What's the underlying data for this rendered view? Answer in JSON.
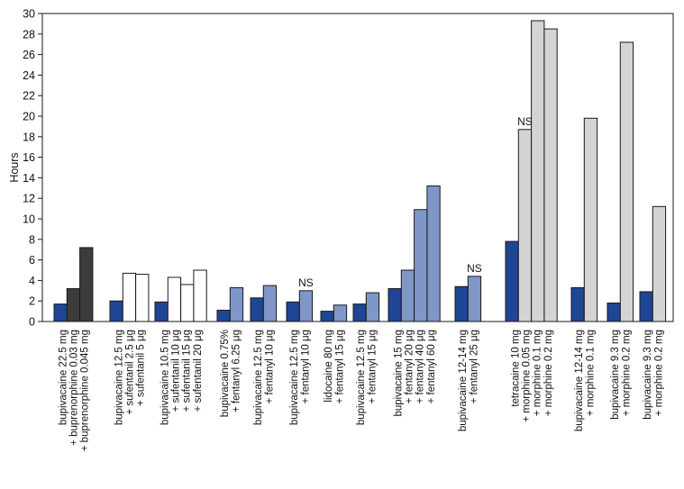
{
  "chart_data": {
    "type": "bar",
    "ylabel": "Hours",
    "xlabel": "",
    "ylim": [
      0,
      30
    ],
    "yticks": [
      0,
      2,
      4,
      6,
      8,
      10,
      12,
      14,
      16,
      18,
      20,
      22,
      24,
      26,
      28,
      30
    ],
    "grid": false,
    "colors": {
      "dark_blue": "#1f4695",
      "charcoal": "#3c3c3c",
      "white": "#ffffff",
      "light_blue": "#7f96c8",
      "light_gray": "#d4d4d4",
      "border": "#1a1a1a"
    },
    "groups": [
      {
        "label_lines": [
          "bupivacaine  22.5 mg",
          "+  buprenorphine  0.03 mg",
          "+  buprenorphine  0.045 mg"
        ],
        "bars": [
          {
            "value": 1.7,
            "color": "dark_blue"
          },
          {
            "value": 3.2,
            "color": "charcoal"
          },
          {
            "value": 7.2,
            "color": "charcoal"
          }
        ]
      },
      {
        "label_lines": [
          "bupivacaine 12.5 mg",
          "+  sufentanil 2.5 μg",
          "+  sufentanil 5 μg"
        ],
        "bars": [
          {
            "value": 2.0,
            "color": "dark_blue"
          },
          {
            "value": 4.7,
            "color": "white"
          },
          {
            "value": 4.6,
            "color": "white"
          }
        ]
      },
      {
        "label_lines": [
          "bupivacaine 10.5 mg",
          "+  sufentanil 10 μg",
          "+  sufentanil 15 μg",
          "+  sufentanil 20 μg"
        ],
        "bars": [
          {
            "value": 1.9,
            "color": "dark_blue"
          },
          {
            "value": 4.3,
            "color": "white"
          },
          {
            "value": 3.6,
            "color": "white"
          },
          {
            "value": 5.0,
            "color": "white"
          }
        ]
      },
      {
        "label_lines": [
          "bupivacaine 0.75%",
          "+  fentanyl 6.25 μg"
        ],
        "bars": [
          {
            "value": 1.1,
            "color": "dark_blue"
          },
          {
            "value": 3.3,
            "color": "light_blue"
          }
        ]
      },
      {
        "label_lines": [
          "bupivacaine 12.5 mg",
          "+  fentanyl 10 μg"
        ],
        "bars": [
          {
            "value": 2.3,
            "color": "dark_blue"
          },
          {
            "value": 3.5,
            "color": "light_blue"
          }
        ]
      },
      {
        "label_lines": [
          "bupivacaine 12.5 mg",
          "+  fentanyl 10 μg"
        ],
        "annotation": "NS",
        "bars": [
          {
            "value": 1.9,
            "color": "dark_blue"
          },
          {
            "value": 3.0,
            "color": "light_blue"
          }
        ]
      },
      {
        "label_lines": [
          "lidocaine 80 mg",
          "+  fentanyl 15 μg"
        ],
        "bars": [
          {
            "value": 1.0,
            "color": "dark_blue"
          },
          {
            "value": 1.6,
            "color": "light_blue"
          }
        ]
      },
      {
        "label_lines": [
          "bupivacaine 12.5 mg",
          "+  fentanyl 15 μg"
        ],
        "bars": [
          {
            "value": 1.7,
            "color": "dark_blue"
          },
          {
            "value": 2.8,
            "color": "light_blue"
          }
        ]
      },
      {
        "label_lines": [
          "bupivacaine 15 mg",
          "+  fentanyl 20 μg",
          "+  fentanyl 40 μg",
          "+  fentanyl 60 μg"
        ],
        "bars": [
          {
            "value": 3.2,
            "color": "dark_blue"
          },
          {
            "value": 5.0,
            "color": "light_blue"
          },
          {
            "value": 10.9,
            "color": "light_blue"
          },
          {
            "value": 13.2,
            "color": "light_blue"
          }
        ]
      },
      {
        "label_lines": [
          "bupivacaine 12-14 mg",
          "+  fentanyl 25 μg"
        ],
        "annotation": "NS",
        "bars": [
          {
            "value": 3.4,
            "color": "dark_blue"
          },
          {
            "value": 4.4,
            "color": "light_blue"
          }
        ]
      },
      {
        "label_lines": [
          "tetracaine 10 mg",
          "+  morphine 0.05 mg",
          "+  morphine 0.1 mg",
          "+  morphine 0.2 mg"
        ],
        "annotation": "NS",
        "bars": [
          {
            "value": 7.8,
            "color": "dark_blue"
          },
          {
            "value": 18.7,
            "color": "light_gray"
          },
          {
            "value": 29.3,
            "color": "light_gray"
          },
          {
            "value": 28.5,
            "color": "light_gray"
          }
        ]
      },
      {
        "label_lines": [
          "bupivacaine 12-14 mg",
          "+  morphine 0.1 mg"
        ],
        "bars": [
          {
            "value": 3.3,
            "color": "dark_blue"
          },
          {
            "value": 19.8,
            "color": "light_gray"
          }
        ]
      },
      {
        "label_lines": [
          "bupivacaine 9.3 mg",
          "+  morphine 0.2 mg"
        ],
        "bars": [
          {
            "value": 1.8,
            "color": "dark_blue"
          },
          {
            "value": 27.2,
            "color": "light_gray"
          }
        ]
      },
      {
        "label_lines": [
          "bupivacaine 9.3 mg",
          "+  morphine 0.2 mg"
        ],
        "bars": [
          {
            "value": 2.9,
            "color": "dark_blue"
          },
          {
            "value": 11.2,
            "color": "light_gray"
          }
        ]
      }
    ]
  }
}
